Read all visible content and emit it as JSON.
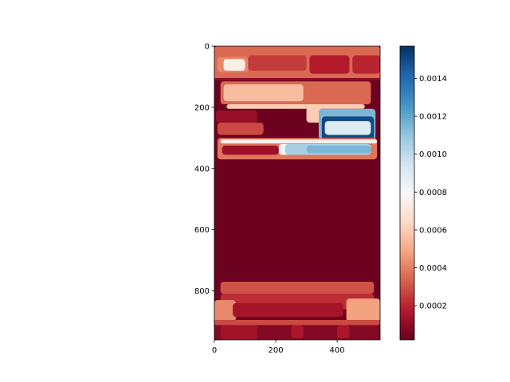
{
  "chart_data": {
    "type": "heatmap",
    "title": "",
    "xlabel": "",
    "ylabel": "",
    "image_extent": {
      "x": [
        0,
        540
      ],
      "y": [
        0,
        960
      ]
    },
    "x_ticks": [
      0,
      200,
      400
    ],
    "y_ticks": [
      0,
      200,
      400,
      600,
      800
    ],
    "colormap": "RdBu_r",
    "colorbar": {
      "range": [
        2e-05,
        0.00157
      ],
      "ticks": [
        0.0002,
        0.0004,
        0.0006,
        0.0008,
        0.001,
        0.0012,
        0.0014
      ],
      "tick_labels": [
        "0.0002",
        "0.0004",
        "0.0006",
        "0.0008",
        "0.0010",
        "0.0012",
        "0.0014"
      ]
    },
    "background_value": 3e-05,
    "regions": [
      {
        "x": [
          0,
          540
        ],
        "y": [
          0,
          110
        ],
        "value": 0.00035
      },
      {
        "x": [
          110,
          300
        ],
        "y": [
          30,
          80
        ],
        "value": 0.00025
      },
      {
        "x": [
          310,
          440
        ],
        "y": [
          30,
          90
        ],
        "value": 0.00018
      },
      {
        "x": [
          450,
          540
        ],
        "y": [
          30,
          90
        ],
        "value": 0.0002
      },
      {
        "x": [
          10,
          110
        ],
        "y": [
          35,
          85
        ],
        "value": 0.00042
      },
      {
        "x": [
          30,
          100
        ],
        "y": [
          42,
          80
        ],
        "value": 0.00075
      },
      {
        "x": [
          0,
          540
        ],
        "y": [
          104,
          112
        ],
        "value": 0.0001
      },
      {
        "x": [
          20,
          510
        ],
        "y": [
          115,
          190
        ],
        "value": 0.00035
      },
      {
        "x": [
          30,
          290
        ],
        "y": [
          125,
          180
        ],
        "value": 0.00055
      },
      {
        "x": [
          40,
          490
        ],
        "y": [
          190,
          205
        ],
        "value": 0.0006
      },
      {
        "x": [
          5,
          140
        ],
        "y": [
          210,
          250
        ],
        "value": 0.00012
      },
      {
        "x": [
          10,
          160
        ],
        "y": [
          250,
          290
        ],
        "value": 0.00028
      },
      {
        "x": [
          300,
          350
        ],
        "y": [
          200,
          250
        ],
        "value": 0.0006
      },
      {
        "x": [
          340,
          525
        ],
        "y": [
          205,
          305
        ],
        "value": 0.00115
      },
      {
        "x": [
          350,
          520
        ],
        "y": [
          230,
          305
        ],
        "value": 0.0015
      },
      {
        "x": [
          360,
          510
        ],
        "y": [
          245,
          290
        ],
        "value": 0.0009
      },
      {
        "x": [
          10,
          530
        ],
        "y": [
          300,
          370
        ],
        "value": 0.00038
      },
      {
        "x": [
          20,
          530
        ],
        "y": [
          305,
          318
        ],
        "value": 0.00075
      },
      {
        "x": [
          25,
          210
        ],
        "y": [
          325,
          355
        ],
        "value": 0.00013
      },
      {
        "x": [
          210,
          300
        ],
        "y": [
          320,
          355
        ],
        "value": 0.0008
      },
      {
        "x": [
          230,
          510
        ],
        "y": [
          320,
          355
        ],
        "value": 0.00105
      },
      {
        "x": [
          300,
          510
        ],
        "y": [
          325,
          350
        ],
        "value": 0.00115
      },
      {
        "x": [
          20,
          520
        ],
        "y": [
          770,
          810
        ],
        "value": 0.0003
      },
      {
        "x": [
          20,
          520
        ],
        "y": [
          810,
          860
        ],
        "value": 0.00022
      },
      {
        "x": [
          0,
          70
        ],
        "y": [
          830,
          900
        ],
        "value": 0.00042
      },
      {
        "x": [
          430,
          540
        ],
        "y": [
          825,
          900
        ],
        "value": 0.00048
      },
      {
        "x": [
          60,
          420
        ],
        "y": [
          840,
          885
        ],
        "value": 0.00015
      },
      {
        "x": [
          0,
          540
        ],
        "y": [
          895,
          912
        ],
        "value": 0.00028
      },
      {
        "x": [
          0,
          540
        ],
        "y": [
          912,
          960
        ],
        "value": 8e-05
      },
      {
        "x": [
          20,
          140
        ],
        "y": [
          912,
          960
        ],
        "value": 0.00014
      },
      {
        "x": [
          250,
          290
        ],
        "y": [
          912,
          955
        ],
        "value": 0.00016
      },
      {
        "x": [
          400,
          440
        ],
        "y": [
          912,
          955
        ],
        "value": 0.00016
      }
    ]
  }
}
